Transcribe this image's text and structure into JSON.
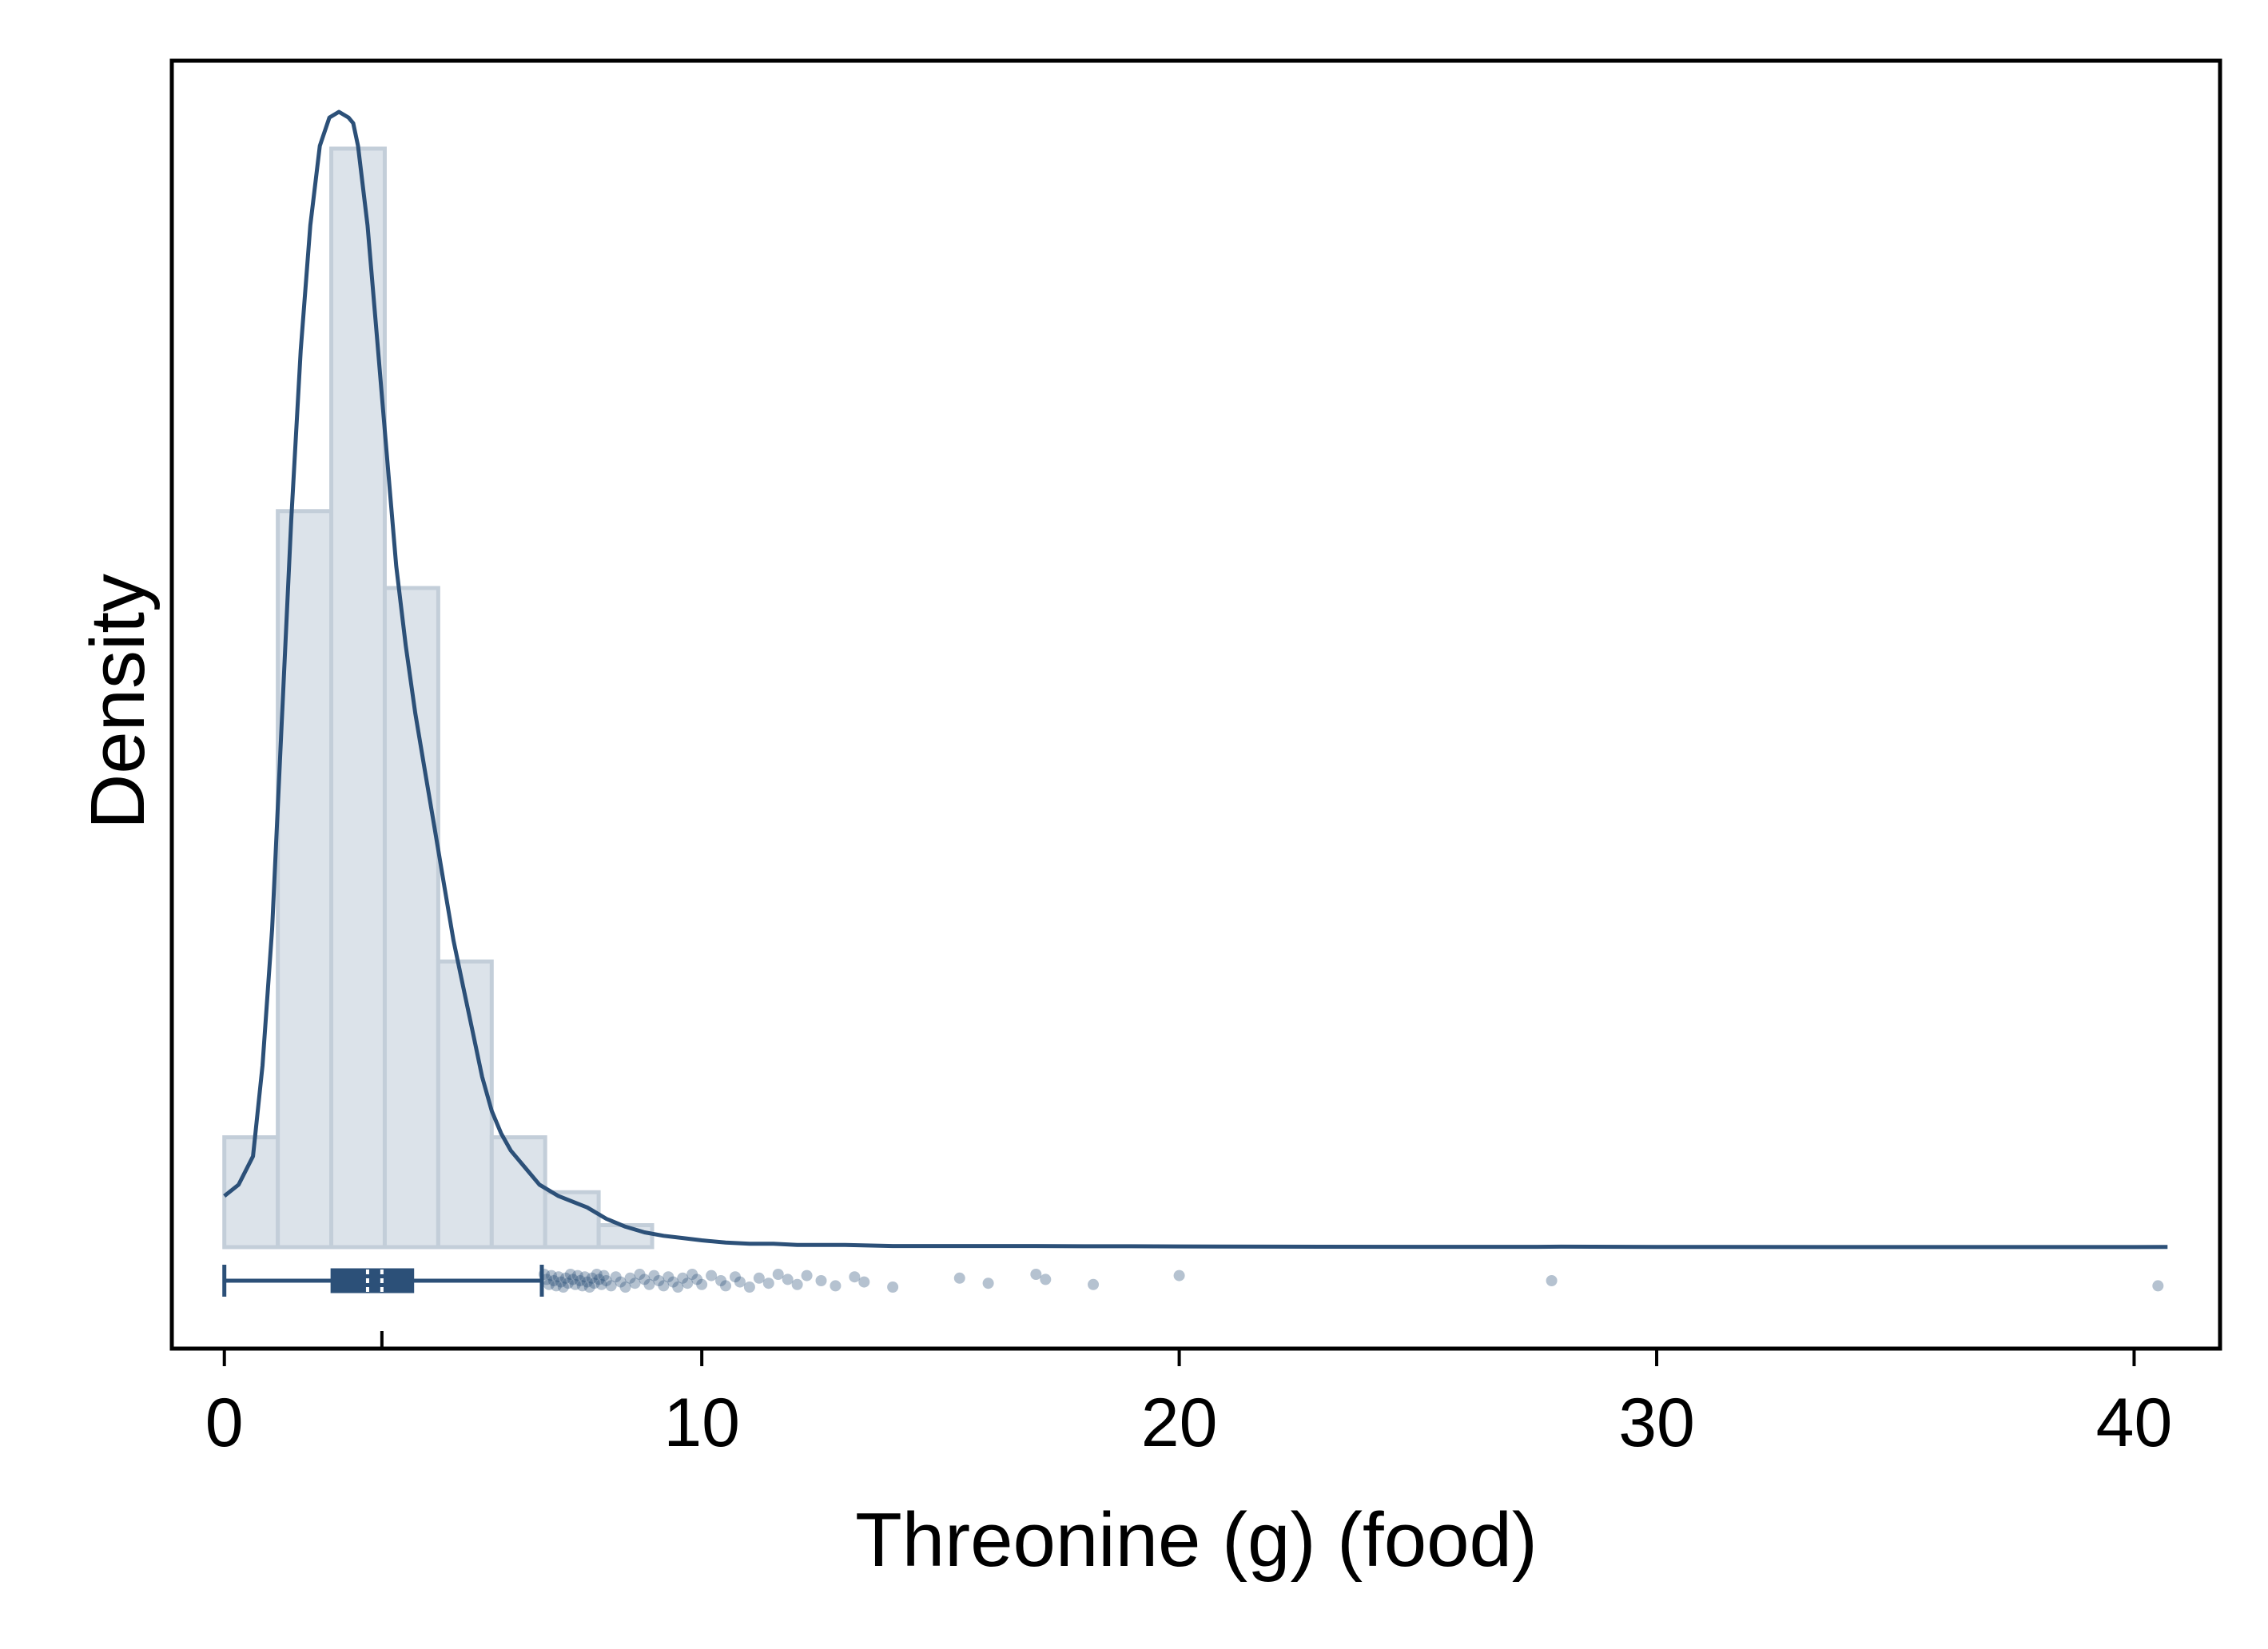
{
  "chart_data": {
    "type": "histogram",
    "xlabel": "Threonine (g) (food)",
    "ylabel": "Density",
    "xlim": [
      -1.1,
      41.8
    ],
    "x_ticks": [
      0,
      10,
      20,
      30,
      40
    ],
    "y_ticks_shown": false,
    "grid": false,
    "legend": "none",
    "histogram": {
      "bin_edges": [
        0,
        1.12,
        2.24,
        3.36,
        4.48,
        5.6,
        6.72,
        7.84,
        8.96
      ],
      "relative_heights": [
        0.1,
        0.67,
        1.0,
        0.6,
        0.26,
        0.1,
        0.05,
        0.02
      ],
      "fill_color": "#dce3ea",
      "edge_color": "#c3ced9"
    },
    "density_curve": {
      "color": "#2c5078",
      "x": [
        0,
        0.3,
        0.6,
        0.8,
        1.0,
        1.2,
        1.4,
        1.6,
        1.8,
        2.0,
        2.2,
        2.4,
        2.6,
        2.7,
        2.8,
        3.0,
        3.2,
        3.4,
        3.6,
        3.8,
        4.0,
        4.2,
        4.4,
        4.6,
        4.8,
        5.0,
        5.2,
        5.4,
        5.6,
        5.8,
        6.0,
        6.3,
        6.6,
        7.0,
        7.3,
        7.6,
        8.0,
        8.4,
        8.8,
        9.2,
        9.6,
        10.0,
        10.5,
        11.0,
        11.5,
        12.0,
        12.5,
        13.0,
        14.0,
        15.0,
        16.0,
        17.0,
        18.0,
        19.0,
        20.0,
        22.0,
        25.0,
        27.5,
        28.0,
        30.0,
        35.0,
        40.0,
        40.7
      ],
      "relative_density": [
        0.045,
        0.055,
        0.08,
        0.16,
        0.28,
        0.46,
        0.64,
        0.79,
        0.9,
        0.97,
        0.995,
        1.0,
        0.995,
        0.99,
        0.97,
        0.9,
        0.8,
        0.7,
        0.6,
        0.53,
        0.47,
        0.42,
        0.37,
        0.32,
        0.27,
        0.23,
        0.19,
        0.15,
        0.12,
        0.1,
        0.085,
        0.07,
        0.055,
        0.045,
        0.04,
        0.035,
        0.025,
        0.018,
        0.013,
        0.01,
        0.008,
        0.006,
        0.004,
        0.003,
        0.003,
        0.002,
        0.002,
        0.002,
        0.001,
        0.001,
        0.001,
        0.001,
        0.0008,
        0.0008,
        0.0006,
        0.0004,
        0.0003,
        0.0003,
        0.0004,
        0.0002,
        0.0001,
        0.0001,
        0.0002
      ]
    },
    "boxplot": {
      "color": "#2c5078",
      "whisker_low": 0,
      "q1": 2.25,
      "median": 3.0,
      "mean": 3.3,
      "q3": 3.95,
      "whisker_high": 6.65,
      "outliers": [
        6.7,
        6.75,
        6.8,
        6.85,
        6.9,
        6.95,
        7.0,
        7.05,
        7.1,
        7.15,
        7.2,
        7.25,
        7.3,
        7.35,
        7.4,
        7.45,
        7.5,
        7.55,
        7.6,
        7.65,
        7.7,
        7.75,
        7.8,
        7.85,
        7.9,
        7.95,
        8.0,
        8.1,
        8.2,
        8.3,
        8.4,
        8.5,
        8.6,
        8.7,
        8.8,
        8.9,
        9.0,
        9.1,
        9.2,
        9.3,
        9.4,
        9.5,
        9.6,
        9.7,
        9.8,
        9.9,
        10.0,
        10.2,
        10.4,
        10.5,
        10.7,
        10.8,
        11.0,
        11.2,
        11.4,
        11.6,
        11.8,
        12.0,
        12.2,
        12.5,
        12.8,
        13.2,
        13.4,
        14.0,
        15.4,
        16.0,
        17.0,
        17.2,
        18.2,
        20.0,
        27.8,
        40.5
      ]
    }
  }
}
